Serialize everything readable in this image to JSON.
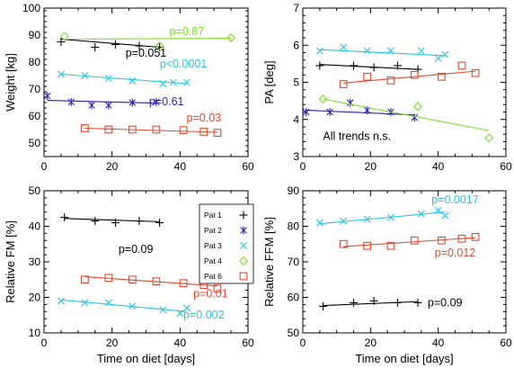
{
  "figure": {
    "legend": {
      "entries": [
        {
          "name": "Pat 1",
          "color": "#000000",
          "marker": "plus"
        },
        {
          "name": "Pat 2",
          "color": "#2b22b5",
          "marker": "asterisk"
        },
        {
          "name": "Pat 3",
          "color": "#25c4e6",
          "marker": "x"
        },
        {
          "name": "Pat 4",
          "color": "#7fdc2e",
          "marker": "diamond"
        },
        {
          "name": "Pat 6",
          "color": "#e2492f",
          "marker": "square"
        }
      ]
    }
  },
  "chart_data": [
    {
      "type": "scatter",
      "xlabel": "",
      "ylabel": "Weight [kg]",
      "xlim": [
        0,
        60
      ],
      "ylim": [
        45,
        100
      ],
      "xticks": [
        0,
        20,
        40,
        60
      ],
      "yticks": [
        50,
        60,
        70,
        80,
        90,
        100
      ],
      "series": [
        {
          "name": "Pat 1",
          "color": "#000000",
          "marker": "plus",
          "x": [
            5,
            15,
            21,
            28,
            34
          ],
          "y": [
            87.5,
            85.5,
            86.5,
            86.0,
            85.5
          ],
          "fit": [
            88.5,
            85.5
          ]
        },
        {
          "name": "Pat 2",
          "color": "#2b22b5",
          "marker": "asterisk",
          "x": [
            1,
            8,
            14,
            19,
            26,
            33
          ],
          "y": [
            67.5,
            65.2,
            64.0,
            64.0,
            65.0,
            65.2
          ],
          "fit": [
            65.8,
            64.8
          ]
        },
        {
          "name": "Pat 3",
          "color": "#25c4e6",
          "marker": "x",
          "x": [
            5,
            12,
            19,
            26,
            35,
            38,
            42
          ],
          "y": [
            75.5,
            75.0,
            74.0,
            73.0,
            72.0,
            72.5,
            72.5
          ],
          "fit": [
            75.5,
            72.0
          ]
        },
        {
          "name": "Pat 4",
          "color": "#7fdc2e",
          "marker": "diamond",
          "x": [
            6,
            34,
            55
          ],
          "y": [
            89.5,
            86.0,
            89.0
          ],
          "fit": [
            88.5,
            88.8
          ]
        },
        {
          "name": "Pat 6",
          "color": "#e2492f",
          "marker": "square",
          "x": [
            12,
            19,
            26,
            33,
            41,
            47,
            51
          ],
          "y": [
            55.5,
            55.0,
            55.0,
            55.0,
            54.8,
            54.2,
            53.8
          ],
          "fit": [
            55.5,
            54.0
          ]
        }
      ],
      "annotations": [
        {
          "text": "p=0.87",
          "color": "#7fdc2e",
          "x": 42,
          "y": 90
        },
        {
          "text": "p=0.051",
          "color": "#000000",
          "x": 30,
          "y": 82
        },
        {
          "text": "p<0.0001",
          "color": "#25c4e6",
          "x": 41,
          "y": 78
        },
        {
          "text": "p=0.61",
          "color": "#2b22b5",
          "x": 36,
          "y": 64
        },
        {
          "text": "p=0.03",
          "color": "#e2492f",
          "x": 47,
          "y": 58
        }
      ]
    },
    {
      "type": "scatter",
      "xlabel": "",
      "ylabel": "PA [deg]",
      "xlim": [
        0,
        60
      ],
      "ylim": [
        3,
        7
      ],
      "xticks": [
        0,
        20,
        40,
        60
      ],
      "yticks": [
        3,
        4,
        5,
        6,
        7
      ],
      "series": [
        {
          "name": "Pat 1",
          "color": "#000000",
          "marker": "plus",
          "x": [
            5,
            15,
            21,
            28,
            34
          ],
          "y": [
            5.45,
            5.45,
            5.4,
            5.45,
            5.35
          ],
          "fit": [
            5.48,
            5.35
          ]
        },
        {
          "name": "Pat 2",
          "color": "#2b22b5",
          "marker": "asterisk",
          "x": [
            1,
            8,
            14,
            19,
            26,
            33
          ],
          "y": [
            4.2,
            4.2,
            4.45,
            4.25,
            4.2,
            4.05
          ],
          "fit": [
            4.25,
            4.12
          ]
        },
        {
          "name": "Pat 3",
          "color": "#25c4e6",
          "marker": "x",
          "x": [
            5,
            12,
            19,
            26,
            35,
            40,
            42
          ],
          "y": [
            5.85,
            5.95,
            5.85,
            5.85,
            5.85,
            5.65,
            5.75
          ],
          "fit": [
            5.88,
            5.72
          ]
        },
        {
          "name": "Pat 4",
          "color": "#7fdc2e",
          "marker": "diamond",
          "x": [
            6,
            34,
            55
          ],
          "y": [
            4.55,
            4.35,
            3.5
          ],
          "fit": [
            4.55,
            3.7
          ]
        },
        {
          "name": "Pat 6",
          "color": "#e2492f",
          "marker": "square",
          "x": [
            12,
            19,
            26,
            33,
            41,
            47,
            51
          ],
          "y": [
            4.95,
            5.15,
            5.05,
            5.2,
            5.15,
            5.45,
            5.25
          ],
          "fit": [
            4.98,
            5.3
          ]
        }
      ],
      "annotations": [
        {
          "text": "All trends n.s.",
          "color": "#000000",
          "x": 16,
          "y": 3.45
        }
      ]
    },
    {
      "type": "scatter",
      "xlabel": "Time on diet [days]",
      "ylabel": "Relative FM [%]",
      "xlim": [
        0,
        60
      ],
      "ylim": [
        10,
        50
      ],
      "xticks": [
        0,
        20,
        40,
        60
      ],
      "yticks": [
        10,
        20,
        30,
        40,
        50
      ],
      "series": [
        {
          "name": "Pat 1",
          "color": "#000000",
          "marker": "plus",
          "x": [
            6,
            15,
            21,
            28,
            34
          ],
          "y": [
            42.5,
            41.5,
            41.0,
            41.5,
            41.0
          ],
          "fit": [
            42.2,
            41.3
          ]
        },
        {
          "name": "Pat 3",
          "color": "#25c4e6",
          "marker": "x",
          "x": [
            5,
            12,
            19,
            26,
            35,
            40,
            42
          ],
          "y": [
            19.0,
            18.5,
            18.5,
            17.5,
            16.5,
            15.5,
            17.0
          ],
          "fit": [
            19.3,
            16.0
          ]
        },
        {
          "name": "Pat 6",
          "color": "#e2492f",
          "marker": "square",
          "x": [
            12,
            19,
            26,
            33,
            41,
            47,
            51
          ],
          "y": [
            25.0,
            25.5,
            25.0,
            24.5,
            24.0,
            23.5,
            22.5
          ],
          "fit": [
            25.8,
            23.2
          ]
        }
      ],
      "annotations": [
        {
          "text": "p=0.09",
          "color": "#000000",
          "x": 27,
          "y": 32.5
        },
        {
          "text": "p=0.01",
          "color": "#e2492f",
          "x": 49,
          "y": 20
        },
        {
          "text": "p=0.002",
          "color": "#25c4e6",
          "x": 47,
          "y": 14
        }
      ]
    },
    {
      "type": "scatter",
      "xlabel": "Time on diet [days]",
      "ylabel": "Relative FFM [%]",
      "xlim": [
        0,
        60
      ],
      "ylim": [
        50,
        90
      ],
      "xticks": [
        0,
        20,
        40,
        60
      ],
      "yticks": [
        50,
        60,
        70,
        80,
        90
      ],
      "series": [
        {
          "name": "Pat 1",
          "color": "#000000",
          "marker": "plus",
          "x": [
            6,
            15,
            21,
            28,
            34
          ],
          "y": [
            57.5,
            58.5,
            59.0,
            58.5,
            58.5
          ],
          "fit": [
            57.7,
            58.8
          ]
        },
        {
          "name": "Pat 3",
          "color": "#25c4e6",
          "marker": "x",
          "x": [
            5,
            12,
            19,
            26,
            35,
            40,
            42
          ],
          "y": [
            81.0,
            81.5,
            82.0,
            82.5,
            83.5,
            84.5,
            83.0
          ],
          "fit": [
            80.7,
            84.0
          ]
        },
        {
          "name": "Pat 6",
          "color": "#e2492f",
          "marker": "square",
          "x": [
            12,
            19,
            26,
            33,
            41,
            47,
            51
          ],
          "y": [
            75.0,
            74.5,
            74.5,
            76.0,
            76.0,
            76.5,
            77.0
          ],
          "fit": [
            74.3,
            76.8
          ]
        }
      ],
      "annotations": [
        {
          "text": "p=0.0017",
          "color": "#25c4e6",
          "x": 45,
          "y": 86.5
        },
        {
          "text": "p=0.012",
          "color": "#e2492f",
          "x": 45,
          "y": 71.5
        },
        {
          "text": "p=0.09",
          "color": "#000000",
          "x": 42,
          "y": 57.5
        }
      ]
    }
  ]
}
